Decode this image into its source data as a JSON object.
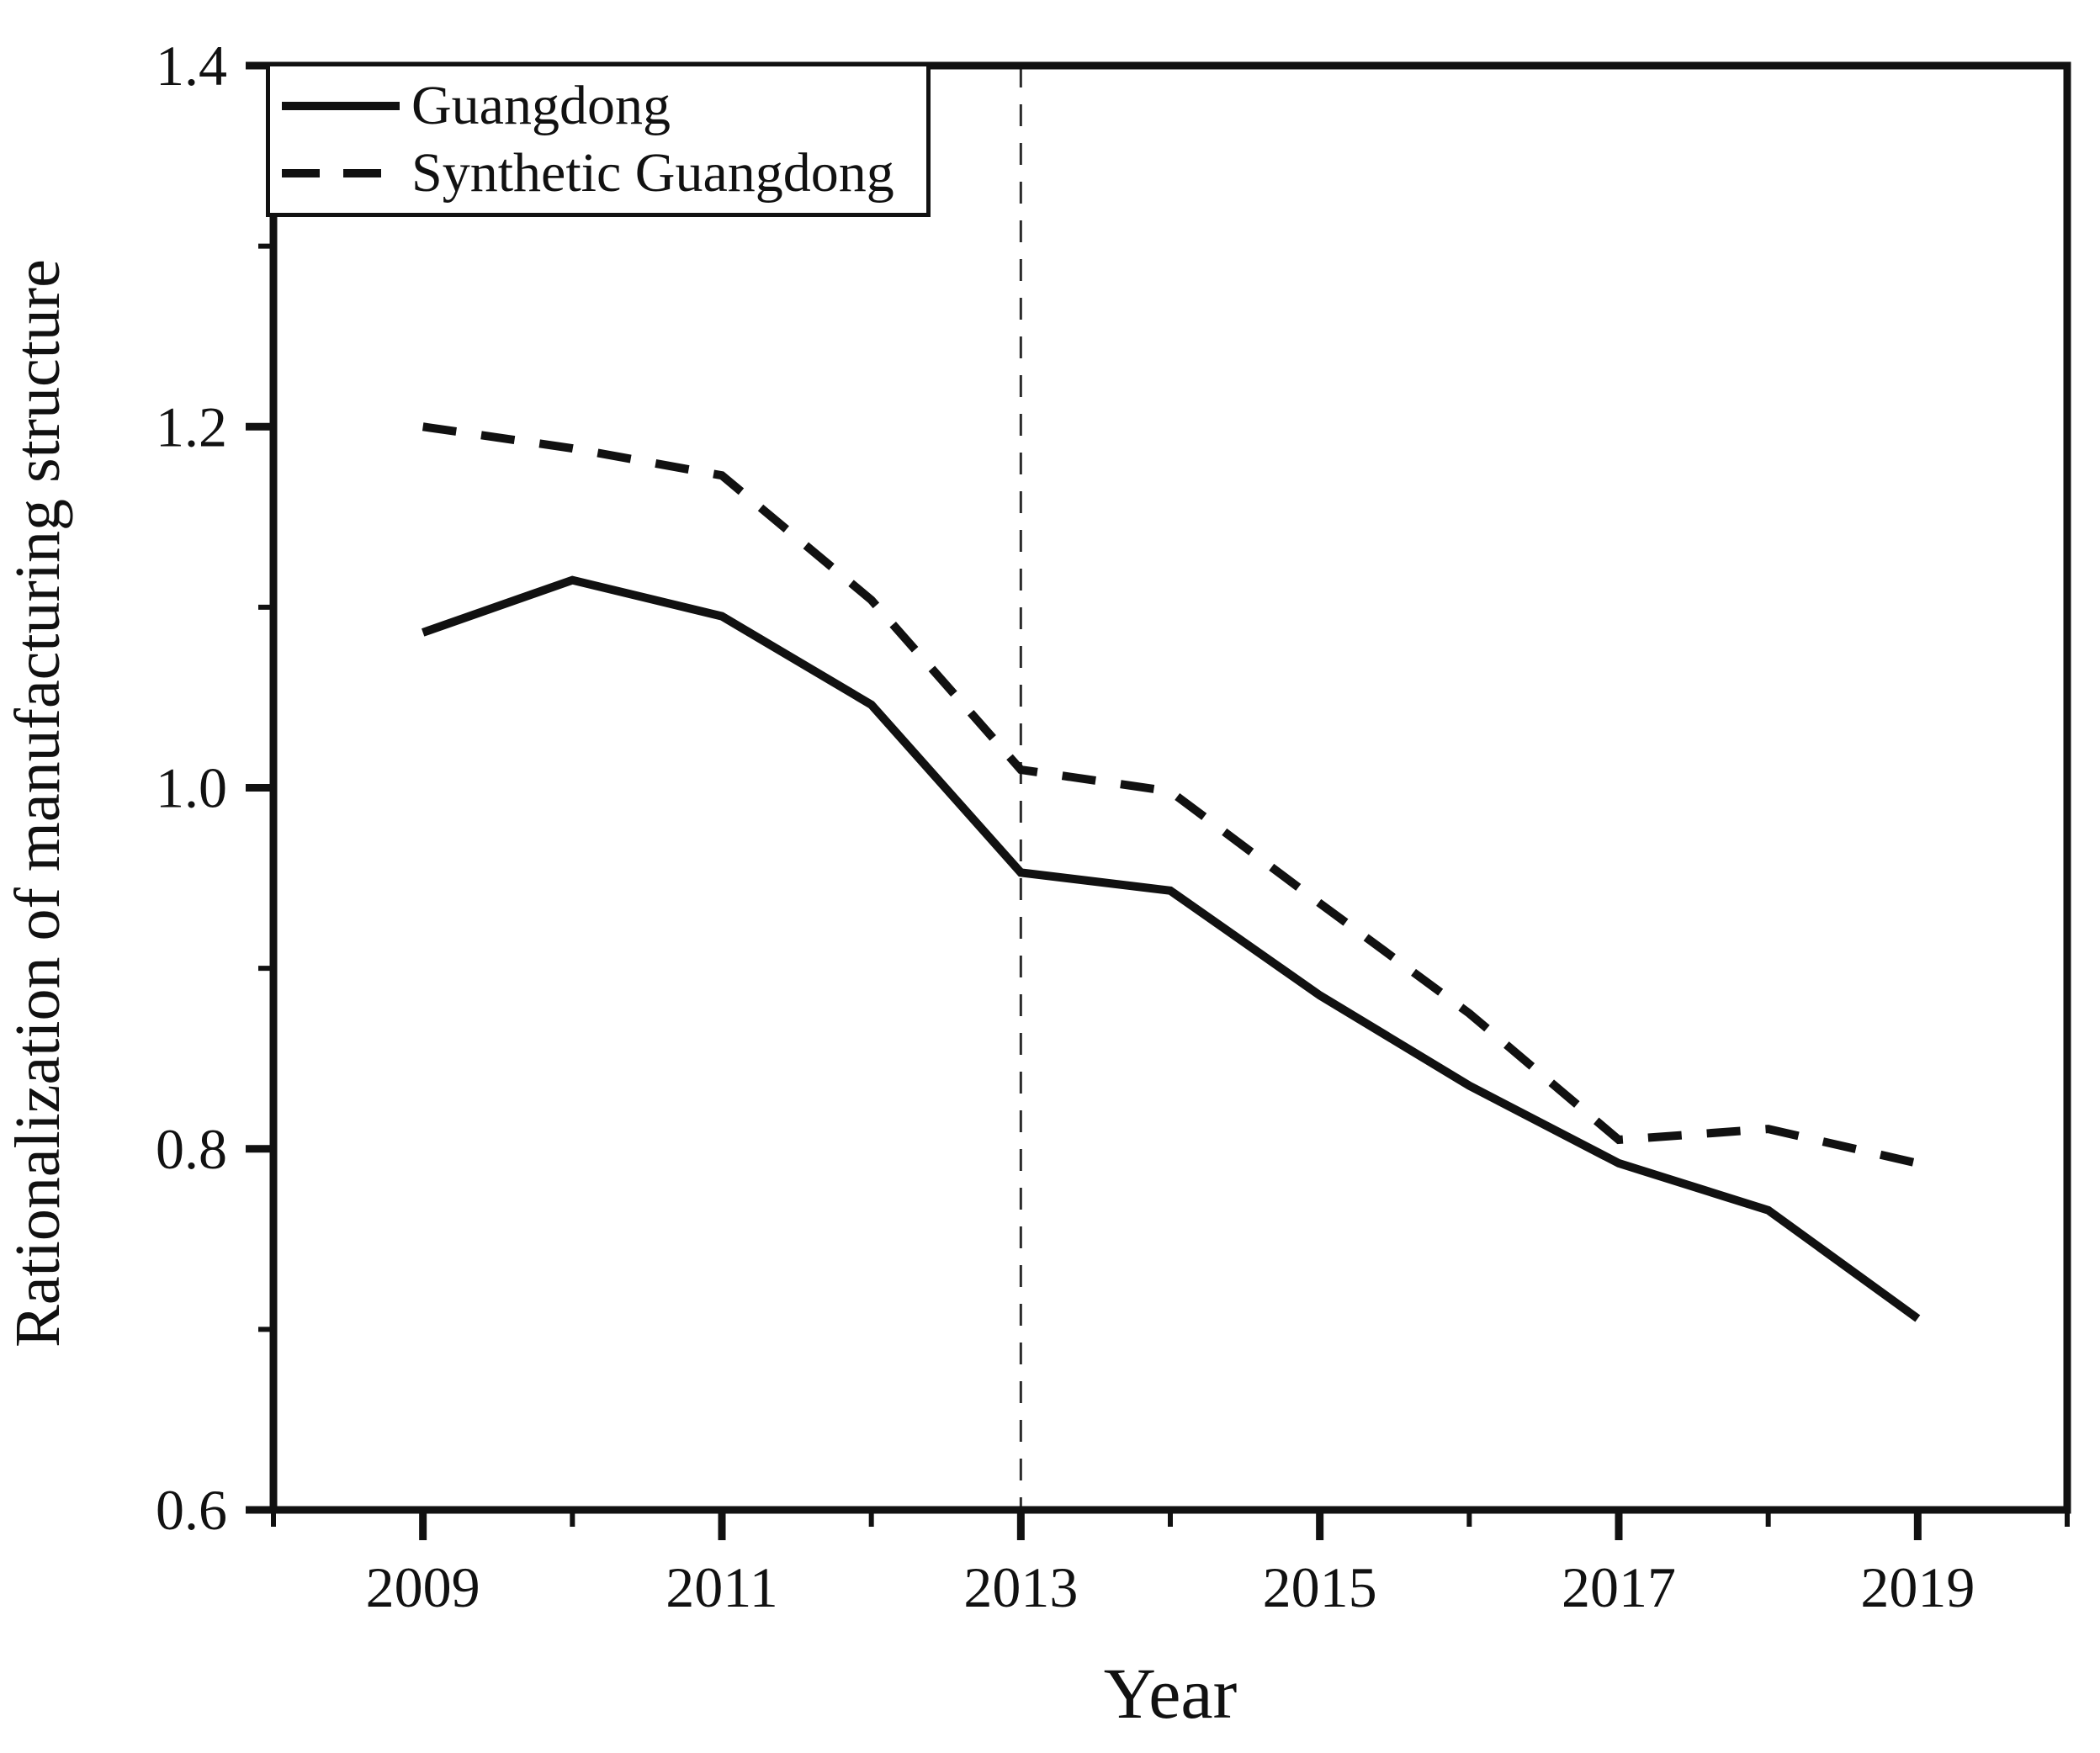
{
  "figure": {
    "background": "#ffffff",
    "ink_color": "#111111"
  },
  "chart_data": {
    "type": "line",
    "title": "",
    "xlabel": "Year",
    "ylabel": "Rationalization of manufacturing structure",
    "xlim": [
      2008,
      2020
    ],
    "ylim": [
      0.6,
      1.4
    ],
    "grid": false,
    "legend_position": "top-left",
    "x": [
      2009,
      2010,
      2011,
      2012,
      2013,
      2014,
      2015,
      2016,
      2017,
      2018,
      2019
    ],
    "series": [
      {
        "name": "Guangdong",
        "line_style": "solid",
        "color": "#111111",
        "values": [
          1.086,
          1.115,
          1.095,
          1.046,
          0.953,
          0.943,
          0.885,
          0.835,
          0.792,
          0.766,
          0.706
        ]
      },
      {
        "name": "Synthetic Guangdong",
        "line_style": "dashed",
        "color": "#111111",
        "values": [
          1.2,
          1.188,
          1.173,
          1.104,
          1.01,
          0.998,
          0.936,
          0.875,
          0.805,
          0.811,
          0.792
        ]
      }
    ],
    "x_major_ticks": [
      2009,
      2011,
      2013,
      2015,
      2017,
      2019
    ],
    "x_major_tick_labels": [
      "2009",
      "2011",
      "2013",
      "2015",
      "2017",
      "2019"
    ],
    "x_minor_ticks": [
      2008,
      2010,
      2012,
      2014,
      2016,
      2018,
      2020
    ],
    "y_major_ticks": [
      1.4,
      1.2,
      1.0,
      0.8,
      0.6
    ],
    "y_major_tick_labels": [
      "1.4",
      "1.2",
      "1.0",
      "0.8",
      "0.6"
    ],
    "y_minor_ticks": [
      1.3,
      1.1,
      0.9,
      0.7
    ],
    "reference_line_x": 2013
  }
}
